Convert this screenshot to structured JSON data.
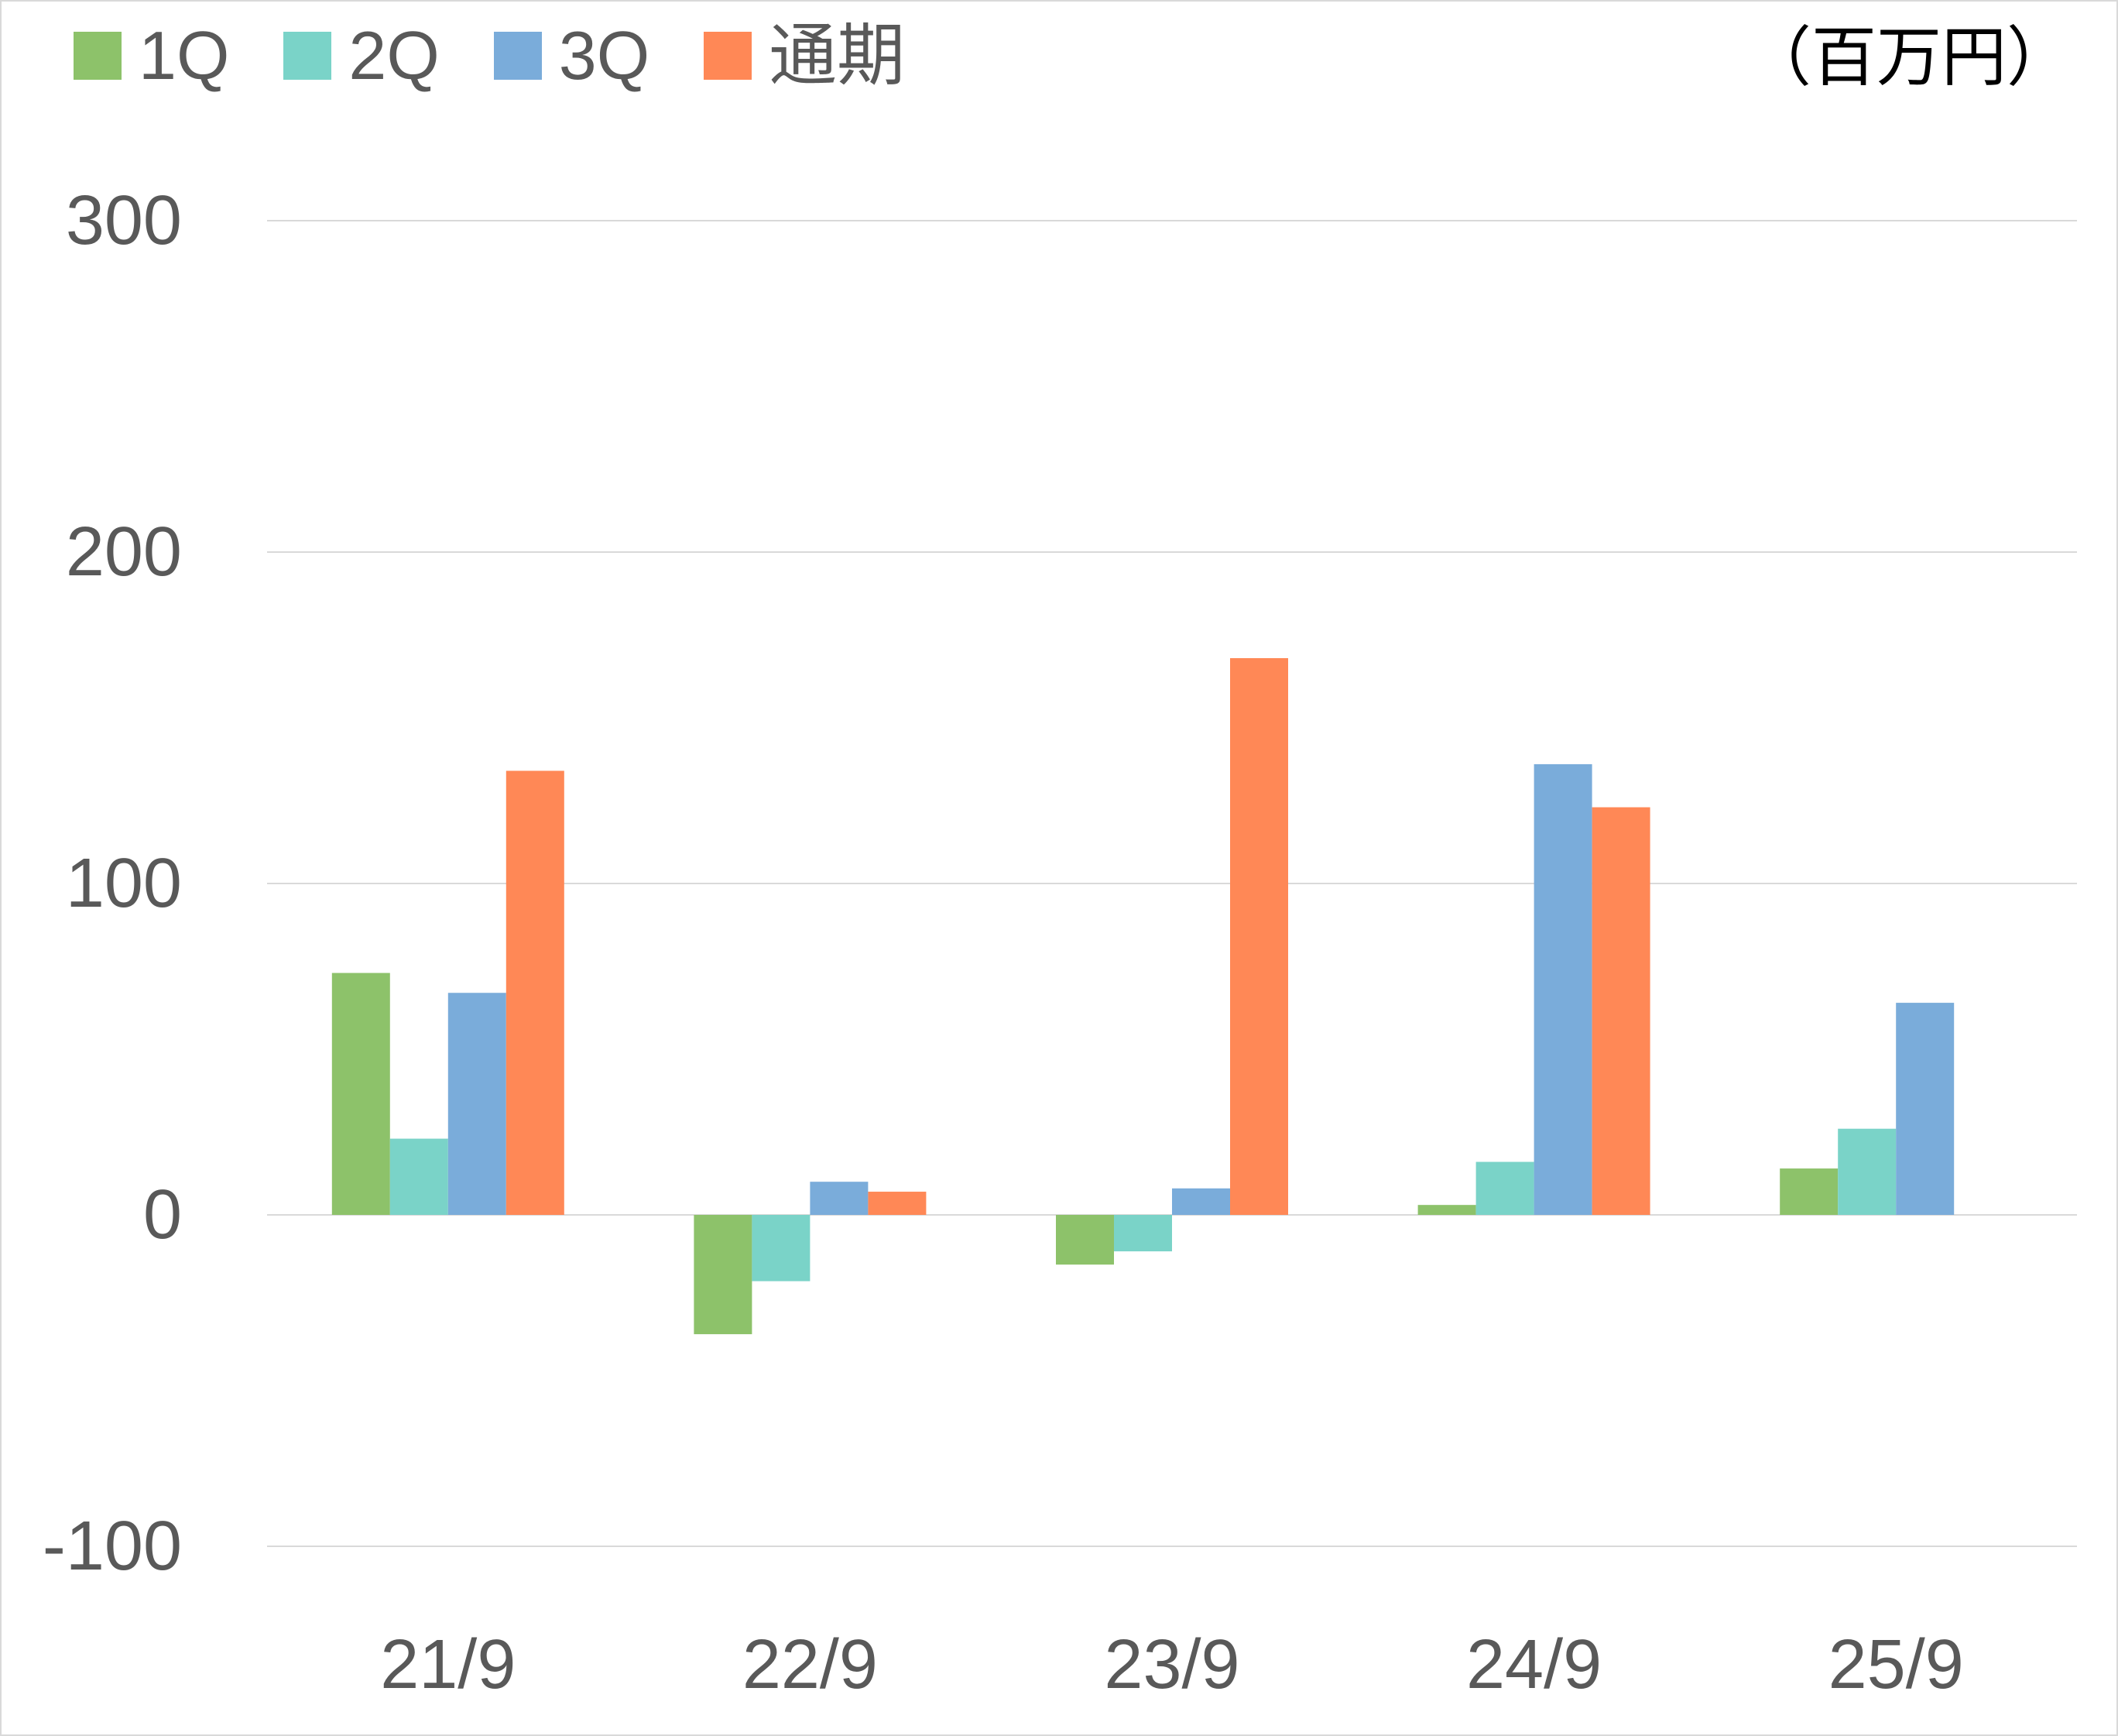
{
  "unit_label": "（百万円）",
  "colors": {
    "1Q": "#8DC26A",
    "2Q": "#7AD3C8",
    "3Q": "#7AACDA",
    "通期": "#FF8856",
    "grid": "#d9d9d9",
    "tick": "#595959"
  },
  "chart_data": {
    "type": "bar",
    "categories": [
      "21/9",
      "22/9",
      "23/9",
      "24/9",
      "25/9"
    ],
    "series": [
      {
        "name": "1Q",
        "values": [
          73,
          -36,
          -15,
          3,
          14
        ]
      },
      {
        "name": "2Q",
        "values": [
          23,
          -20,
          -11,
          16,
          26
        ]
      },
      {
        "name": "3Q",
        "values": [
          67,
          10,
          8,
          136,
          64
        ]
      },
      {
        "name": "通期",
        "values": [
          134,
          7,
          168,
          123,
          null
        ]
      }
    ],
    "yticks": [
      -100,
      0,
      100,
      200,
      300
    ],
    "ylim": [
      -100,
      300
    ],
    "grid": true,
    "legend_position": "top-left"
  }
}
